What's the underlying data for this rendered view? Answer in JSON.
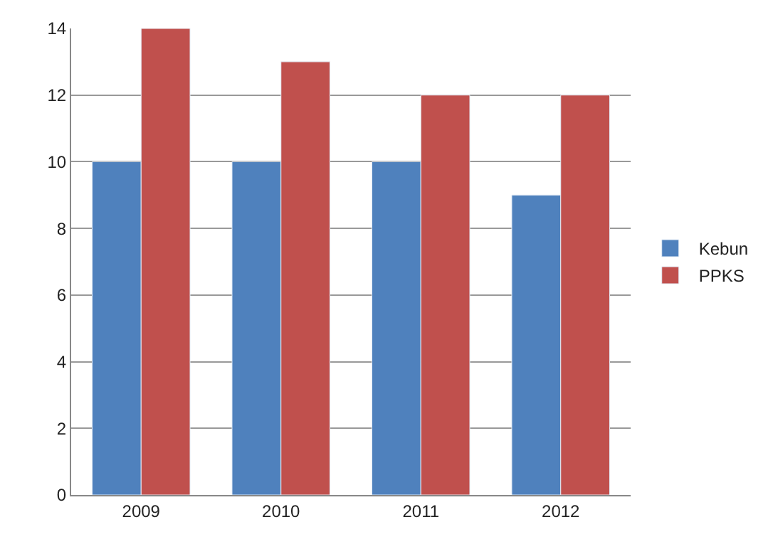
{
  "chart_data": {
    "type": "bar",
    "categories": [
      "2009",
      "2010",
      "2011",
      "2012"
    ],
    "series": [
      {
        "name": "Kebun",
        "color": "#4f81bd",
        "values": [
          10,
          10,
          10,
          9
        ]
      },
      {
        "name": "PPKS",
        "color": "#c0504d",
        "values": [
          14,
          13,
          12,
          12
        ]
      }
    ],
    "ylim": [
      0,
      14
    ],
    "yticks": [
      0,
      2,
      4,
      6,
      8,
      10,
      12,
      14
    ],
    "grid": "y",
    "legend": "right"
  }
}
